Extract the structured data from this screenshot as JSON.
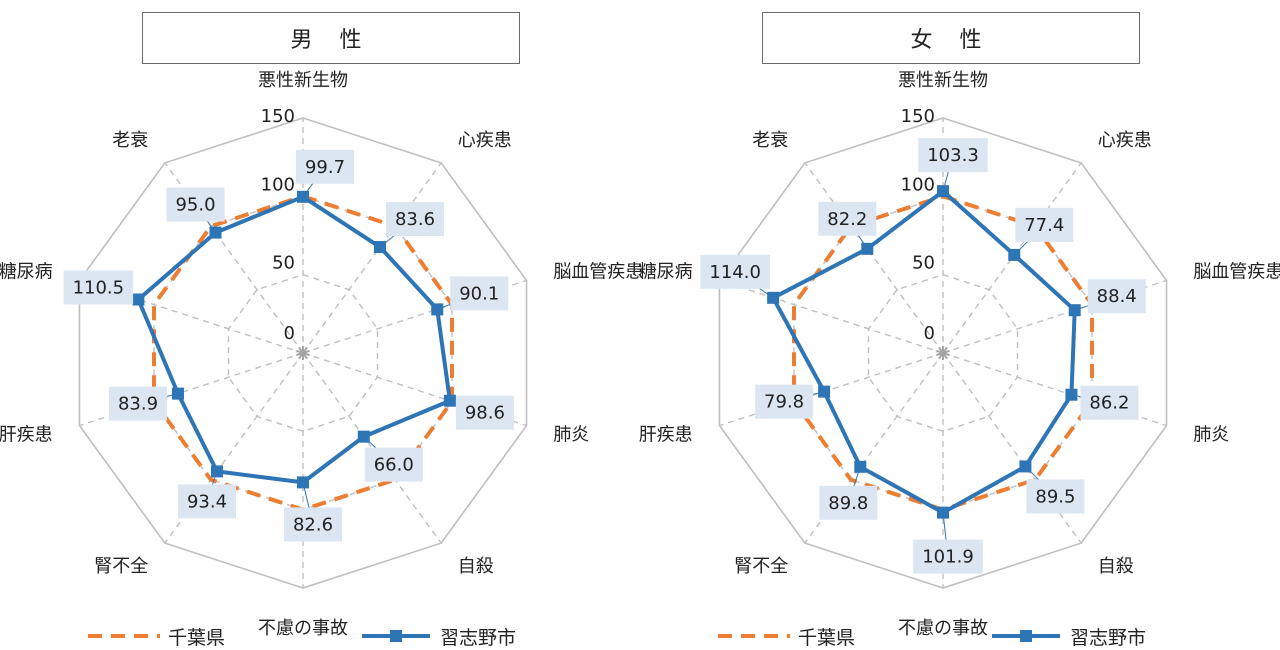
{
  "colors": {
    "prefecture": "#ED7D31",
    "city": "#2E75B6",
    "grid": "#bfbfbf",
    "spoke": "#bfbfbf",
    "label_bg": "#DCE6F2"
  },
  "chart_data": [
    {
      "type": "radar",
      "title": "男 性",
      "categories": [
        "悪性新生物",
        "心疾患",
        "脳血管疾患",
        "肺炎",
        "自殺",
        "不慮の事故",
        "腎不全",
        "肝疾患",
        "糖尿病",
        "老衰"
      ],
      "rlim": [
        0,
        150
      ],
      "rticks": [
        "0",
        "50",
        "100",
        "150"
      ],
      "series": [
        {
          "name": "千葉県",
          "style": "dashed",
          "values": [
            100,
            100,
            100,
            100,
            100,
            100,
            100,
            100,
            100,
            100
          ]
        },
        {
          "name": "習志野市",
          "style": "solid-square-marker",
          "values": [
            99.7,
            83.6,
            90.1,
            98.6,
            66.0,
            82.6,
            93.4,
            83.9,
            110.5,
            95.0
          ],
          "labels": [
            "99.7",
            "83.6",
            "90.1",
            "98.6",
            "66.0",
            "82.6",
            "93.4",
            "83.9",
            "110.5",
            "95.0"
          ]
        }
      ]
    },
    {
      "type": "radar",
      "title": "女 性",
      "categories": [
        "悪性新生物",
        "心疾患",
        "脳血管疾患",
        "肺炎",
        "自殺",
        "不慮の事故",
        "腎不全",
        "肝疾患",
        "糖尿病",
        "老衰"
      ],
      "rlim": [
        0,
        150
      ],
      "rticks": [
        "0",
        "50",
        "100",
        "150"
      ],
      "series": [
        {
          "name": "千葉県",
          "style": "dashed",
          "values": [
            100,
            100,
            100,
            100,
            100,
            100,
            100,
            100,
            100,
            100
          ]
        },
        {
          "name": "習志野市",
          "style": "solid-square-marker",
          "values": [
            103.3,
            77.4,
            88.4,
            86.2,
            89.5,
            101.9,
            89.8,
            79.8,
            114.0,
            82.2
          ],
          "labels": [
            "103.3",
            "77.4",
            "88.4",
            "86.2",
            "89.5",
            "101.9",
            "89.8",
            "79.8",
            "114.0",
            "82.2"
          ]
        }
      ]
    }
  ]
}
